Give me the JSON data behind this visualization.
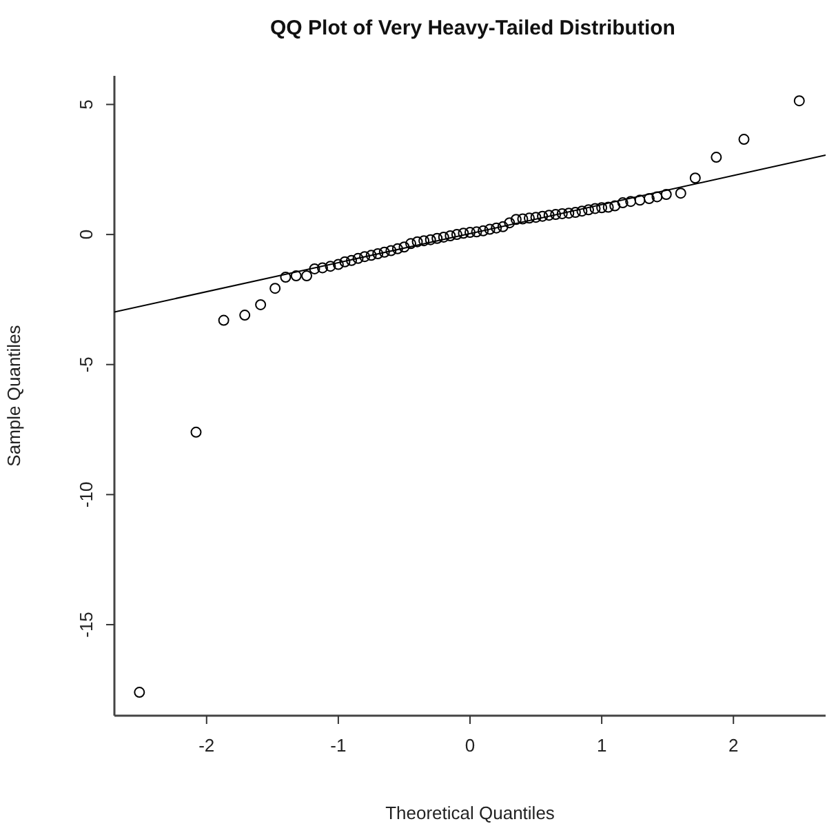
{
  "chart_data": {
    "type": "scatter",
    "title": "QQ Plot of Very Heavy-Tailed Distribution",
    "xlabel": "Theoretical Quantiles",
    "ylabel": "Sample Quantiles",
    "xlim": [
      -2.7,
      2.7
    ],
    "ylim": [
      -18.5,
      6.1
    ],
    "xticks": [
      -2,
      -1,
      0,
      1,
      2
    ],
    "yticks": [
      -15,
      -10,
      -5,
      0,
      5
    ],
    "series": [
      {
        "marker": "circle",
        "color": "#000000",
        "x": [
          -2.51,
          -2.08,
          -1.87,
          -1.71,
          -1.59,
          -1.48,
          -1.4,
          -1.32,
          -1.24,
          -1.18,
          -1.12,
          -1.06,
          -1.0,
          -0.95,
          -0.9,
          -0.85,
          -0.8,
          -0.75,
          -0.7,
          -0.65,
          -0.6,
          -0.55,
          -0.5,
          -0.45,
          -0.4,
          -0.35,
          -0.3,
          -0.25,
          -0.2,
          -0.15,
          -0.1,
          -0.05,
          0,
          0.05,
          0.1,
          0.15,
          0.2,
          0.25,
          0.3,
          0.35,
          0.4,
          0.45,
          0.5,
          0.55,
          0.6,
          0.65,
          0.7,
          0.75,
          0.8,
          0.85,
          0.9,
          0.95,
          1.0,
          1.05,
          1.1,
          1.16,
          1.22,
          1.29,
          1.36,
          1.42,
          1.49,
          1.6,
          1.71,
          1.87,
          2.08,
          2.5
        ],
        "values": [
          -17.6,
          -7.6,
          -3.3,
          -3.1,
          -2.7,
          -2.07,
          -1.64,
          -1.59,
          -1.59,
          -1.32,
          -1.28,
          -1.22,
          -1.15,
          -1.05,
          -1.0,
          -0.92,
          -0.85,
          -0.8,
          -0.74,
          -0.68,
          -0.62,
          -0.55,
          -0.48,
          -0.35,
          -0.28,
          -0.24,
          -0.2,
          -0.15,
          -0.1,
          -0.05,
          0.0,
          0.05,
          0.08,
          0.1,
          0.14,
          0.2,
          0.25,
          0.3,
          0.45,
          0.58,
          0.6,
          0.63,
          0.66,
          0.7,
          0.74,
          0.77,
          0.8,
          0.82,
          0.85,
          0.9,
          0.95,
          1.0,
          1.03,
          1.05,
          1.1,
          1.22,
          1.27,
          1.32,
          1.38,
          1.45,
          1.54,
          1.59,
          2.17,
          2.97,
          3.66,
          5.14
        ]
      },
      {
        "type": "line",
        "marker": "none",
        "color": "#000000",
        "line_style": "solid",
        "x": [
          -2.7,
          2.7
        ],
        "values": [
          -2.98,
          3.05
        ]
      }
    ]
  }
}
